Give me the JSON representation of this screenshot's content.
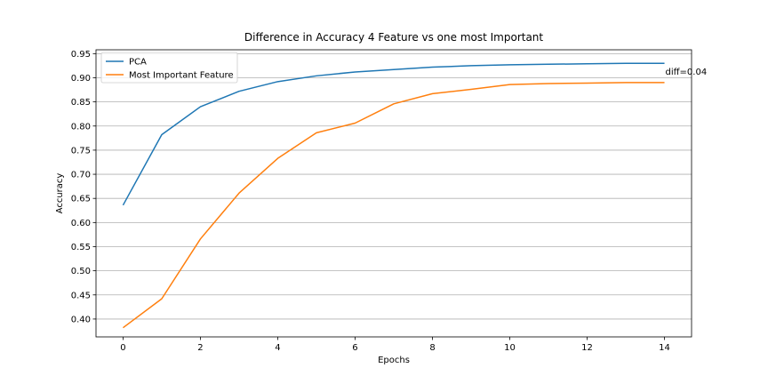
{
  "chart_data": {
    "type": "line",
    "title": "Difference in Accuracy 4 Feature vs one most Important",
    "xlabel": "Epochs",
    "ylabel": "Accuracy",
    "x": [
      0,
      1,
      2,
      3,
      4,
      5,
      6,
      7,
      8,
      9,
      10,
      11,
      12,
      13,
      14
    ],
    "xlim": [
      -0.7,
      14.7
    ],
    "ylim": [
      0.363,
      0.958
    ],
    "xticks": [
      0,
      2,
      4,
      6,
      8,
      10,
      12,
      14
    ],
    "yticks": [
      0.4,
      0.45,
      0.5,
      0.55,
      0.6,
      0.65,
      0.7,
      0.75,
      0.8,
      0.85,
      0.9,
      0.95
    ],
    "grid": "y-axis horizontal lines",
    "legend_position": "top-left",
    "series": [
      {
        "name": "PCA",
        "color": "#1f77b4",
        "values": [
          0.636,
          0.782,
          0.84,
          0.872,
          0.892,
          0.904,
          0.912,
          0.917,
          0.922,
          0.925,
          0.927,
          0.928,
          0.929,
          0.93,
          0.93
        ]
      },
      {
        "name": "Most Important Feature",
        "color": "#ff7f0e",
        "values": [
          0.382,
          0.442,
          0.566,
          0.661,
          0.733,
          0.786,
          0.806,
          0.846,
          0.867,
          0.876,
          0.886,
          0.888,
          0.889,
          0.89,
          0.89
        ]
      }
    ],
    "annotations": [
      {
        "text": "diff=0.04",
        "x": 14,
        "y": 0.905
      }
    ]
  }
}
